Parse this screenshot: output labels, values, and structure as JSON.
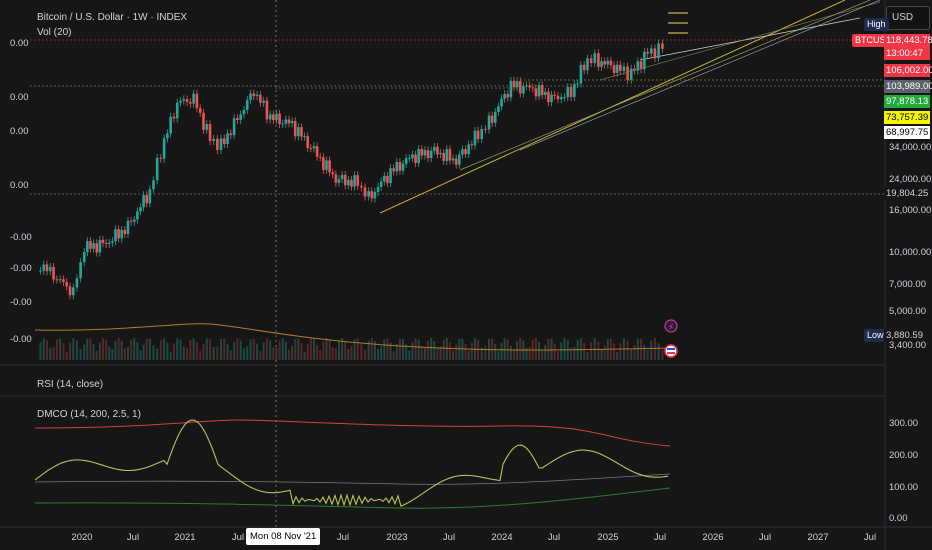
{
  "header": {
    "title": "Bitcoin / U.S. Dollar · 1W · INDEX",
    "volume_label": "Vol (20)",
    "currency": "USD"
  },
  "left_axis": {
    "labels": [
      "0.00",
      "0.00",
      "0.00",
      "0.00",
      "-0.00",
      "-0.00",
      "-0.00",
      "-0.00"
    ]
  },
  "price_axis": {
    "high_tag": "High",
    "low_tag": "Low",
    "labels": [
      "34,000.00",
      "24,000.00",
      "16,000.00",
      "10,000.00",
      "7,000.00",
      "5,000.00",
      "3,400.00"
    ],
    "boxes": [
      {
        "text": "118,443.78",
        "bg": "#f23645",
        "fg": "#ffffff"
      },
      {
        "text": "13:00:47",
        "bg": "#f23645",
        "fg": "#ffffff"
      },
      {
        "text": "106,002.00",
        "bg": "#f23645",
        "fg": "#ffffff"
      },
      {
        "text": "103,989.00",
        "bg": "#5d606b",
        "fg": "#ffffff"
      },
      {
        "text": "97,878.13",
        "bg": "#22ab3a",
        "fg": "#ffffff"
      },
      {
        "text": "73,757.39",
        "bg": "#f5f500",
        "fg": "#000000"
      },
      {
        "text": "68,997.75",
        "bg": "#ffffff",
        "fg": "#000000"
      },
      {
        "text": "19,804.25",
        "bg": "#161616",
        "fg": "#d1d4dc"
      },
      {
        "text": "3,880.59",
        "bg": "#161616",
        "fg": "#d1d4dc"
      }
    ],
    "symbol_tag": "BTCUSD"
  },
  "rsi_panel": {
    "label": "RSI (14, close)"
  },
  "dmco_panel": {
    "label": "DMCO (14, 200, 2.5, 1)",
    "axis": [
      "300.00",
      "200.00",
      "100.00",
      "0.00"
    ]
  },
  "time_axis": {
    "labels": [
      "2020",
      "Jul",
      "2021",
      "Jul",
      "Jul",
      "2023",
      "Jul",
      "2024",
      "Jul",
      "2025",
      "Jul",
      "2026",
      "Jul",
      "2027",
      "Jul"
    ],
    "crosshair_label": "Mon 08 Nov '21"
  },
  "colors": {
    "up": "#26a69a",
    "down": "#ef5350",
    "background": "#161616",
    "trend_yellow": "#c9b037"
  },
  "chart_data": {
    "type": "candlestick",
    "title": "Bitcoin / U.S. Dollar · 1W · INDEX",
    "y_scale": "log",
    "series": [
      {
        "name": "BTCUSD",
        "values": [
          [
            2019.9,
            7200
          ],
          [
            2020.2,
            5000
          ],
          [
            2020.3,
            8800
          ],
          [
            2020.5,
            9300
          ],
          [
            2020.7,
            11500
          ],
          [
            2020.9,
            18000
          ],
          [
            2021.0,
            30000
          ],
          [
            2021.15,
            55000
          ],
          [
            2021.3,
            58000
          ],
          [
            2021.45,
            35000
          ],
          [
            2021.55,
            32000
          ],
          [
            2021.7,
            45000
          ],
          [
            2021.85,
            64000
          ],
          [
            2022.0,
            46000
          ],
          [
            2022.2,
            42000
          ],
          [
            2022.4,
            30000
          ],
          [
            2022.6,
            21000
          ],
          [
            2022.8,
            20000
          ],
          [
            2022.9,
            16500
          ],
          [
            2023.1,
            23000
          ],
          [
            2023.3,
            28000
          ],
          [
            2023.5,
            30000
          ],
          [
            2023.7,
            26500
          ],
          [
            2023.9,
            37000
          ],
          [
            2024.0,
            43000
          ],
          [
            2024.2,
            69000
          ],
          [
            2024.4,
            66000
          ],
          [
            2024.6,
            58000
          ],
          [
            2024.75,
            63000
          ],
          [
            2024.9,
            96000
          ],
          [
            2025.0,
            94000
          ],
          [
            2025.2,
            84000
          ],
          [
            2025.3,
            80000
          ],
          [
            2025.45,
            104000
          ],
          [
            2025.55,
            108000
          ],
          [
            2025.62,
            118443.78
          ]
        ]
      }
    ]
  }
}
